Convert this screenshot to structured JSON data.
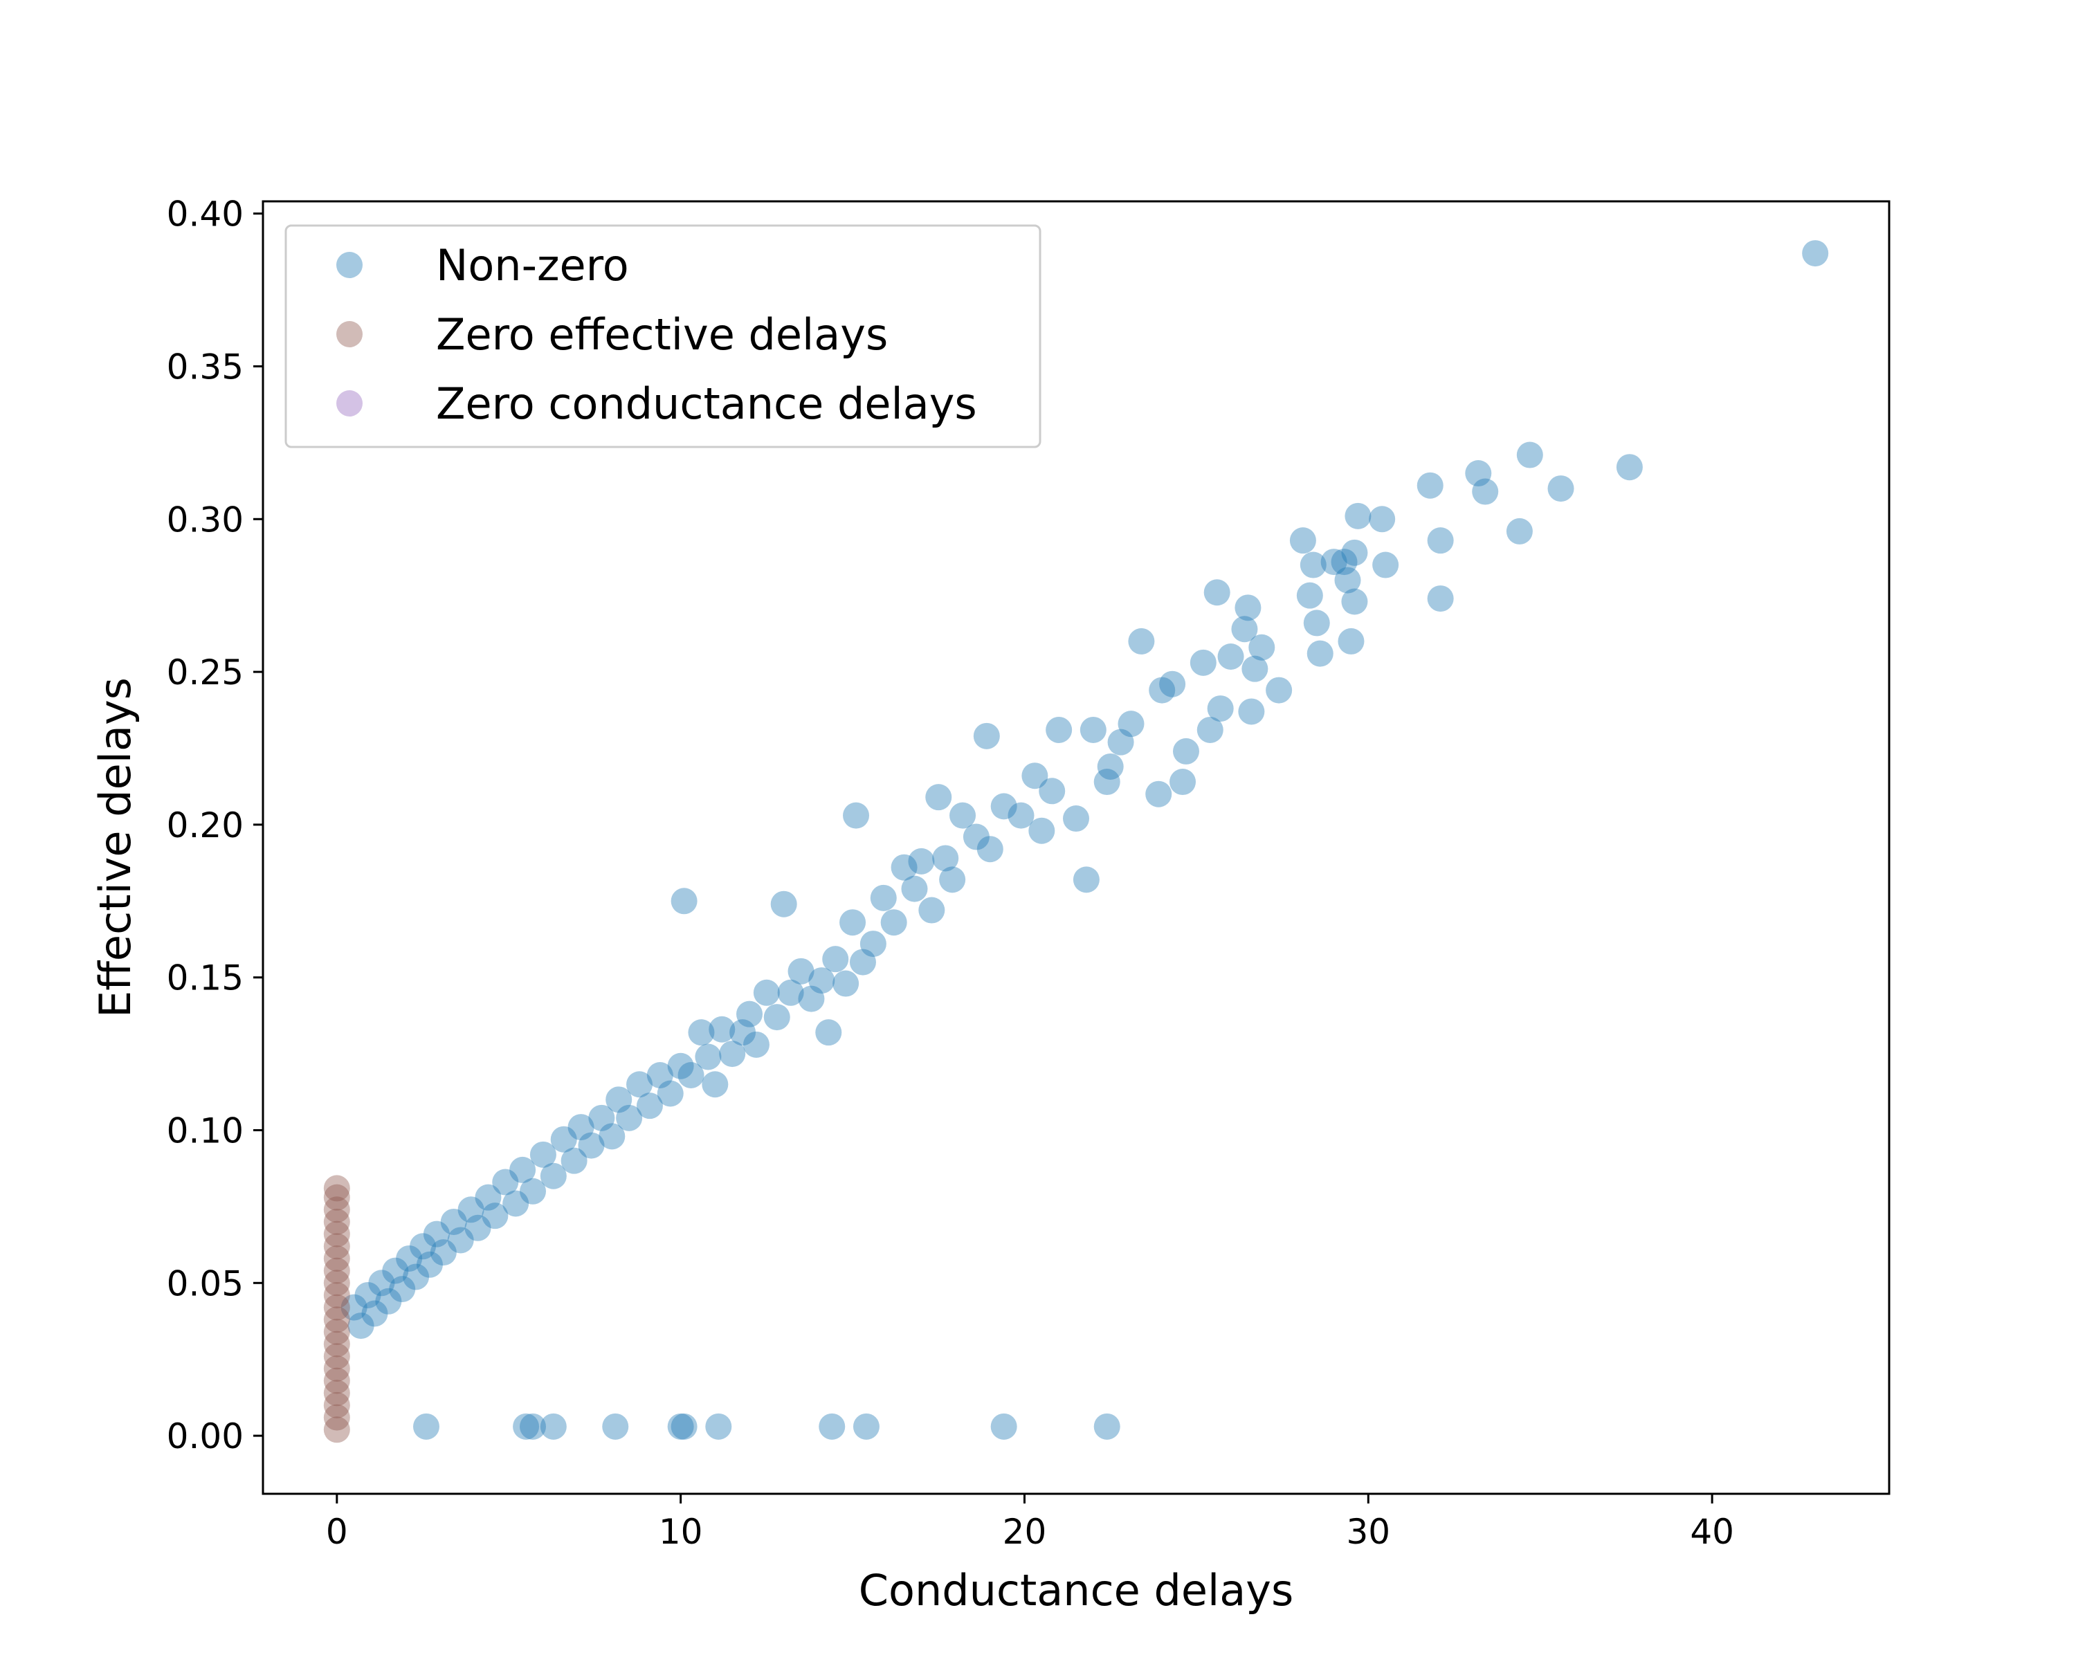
{
  "chart_data": {
    "type": "scatter",
    "title": "",
    "xlabel": "Conductance delays",
    "ylabel": "Effective delays",
    "xlim": [
      -2.15,
      45.15
    ],
    "ylim": [
      -0.019,
      0.404
    ],
    "xticks": [
      0,
      10,
      20,
      30,
      40
    ],
    "xtick_labels": [
      "0",
      "10",
      "20",
      "30",
      "40"
    ],
    "yticks": [
      0.0,
      0.05,
      0.1,
      0.15,
      0.2,
      0.25,
      0.3,
      0.35,
      0.4
    ],
    "ytick_labels": [
      "0.00",
      "0.05",
      "0.10",
      "0.15",
      "0.20",
      "0.25",
      "0.30",
      "0.35",
      "0.40"
    ],
    "grid": false,
    "legend_position": "top-left",
    "colors": {
      "non_zero": "#1f77b4",
      "zero_effective": "#8c564b",
      "zero_conductance": "#9467bd"
    },
    "marker_alpha": 0.4,
    "series": [
      {
        "name": "Non-zero",
        "color": "#1f77b4",
        "points": [
          [
            43.0,
            0.387
          ],
          [
            37.6,
            0.317
          ],
          [
            35.6,
            0.31
          ],
          [
            34.7,
            0.321
          ],
          [
            34.4,
            0.296
          ],
          [
            33.4,
            0.309
          ],
          [
            33.2,
            0.315
          ],
          [
            32.1,
            0.293
          ],
          [
            32.1,
            0.274
          ],
          [
            31.8,
            0.311
          ],
          [
            30.5,
            0.285
          ],
          [
            30.4,
            0.3
          ],
          [
            29.7,
            0.301
          ],
          [
            29.6,
            0.289
          ],
          [
            29.6,
            0.273
          ],
          [
            29.5,
            0.26
          ],
          [
            29.4,
            0.28
          ],
          [
            29.3,
            0.286
          ],
          [
            29.0,
            0.286
          ],
          [
            28.6,
            0.256
          ],
          [
            28.5,
            0.266
          ],
          [
            28.4,
            0.285
          ],
          [
            28.3,
            0.275
          ],
          [
            28.1,
            0.293
          ],
          [
            27.4,
            0.244
          ],
          [
            26.9,
            0.258
          ],
          [
            26.7,
            0.251
          ],
          [
            26.6,
            0.237
          ],
          [
            26.5,
            0.271
          ],
          [
            26.4,
            0.264
          ],
          [
            26.0,
            0.255
          ],
          [
            25.7,
            0.238
          ],
          [
            25.6,
            0.276
          ],
          [
            25.4,
            0.231
          ],
          [
            25.2,
            0.253
          ],
          [
            24.7,
            0.224
          ],
          [
            24.6,
            0.214
          ],
          [
            24.3,
            0.246
          ],
          [
            24.0,
            0.244
          ],
          [
            23.9,
            0.21
          ],
          [
            23.4,
            0.26
          ],
          [
            23.1,
            0.233
          ],
          [
            22.8,
            0.227
          ],
          [
            22.5,
            0.219
          ],
          [
            22.4,
            0.214
          ],
          [
            22.0,
            0.231
          ],
          [
            21.8,
            0.182
          ],
          [
            21.5,
            0.202
          ],
          [
            21.0,
            0.231
          ],
          [
            20.8,
            0.211
          ],
          [
            20.5,
            0.198
          ],
          [
            20.3,
            0.216
          ],
          [
            19.9,
            0.203
          ],
          [
            19.4,
            0.206
          ],
          [
            19.0,
            0.192
          ],
          [
            18.9,
            0.229
          ],
          [
            18.6,
            0.196
          ],
          [
            18.2,
            0.203
          ],
          [
            17.9,
            0.182
          ],
          [
            17.7,
            0.189
          ],
          [
            17.5,
            0.209
          ],
          [
            17.3,
            0.172
          ],
          [
            17.0,
            0.188
          ],
          [
            16.8,
            0.179
          ],
          [
            16.5,
            0.186
          ],
          [
            16.2,
            0.168
          ],
          [
            15.9,
            0.176
          ],
          [
            15.6,
            0.161
          ],
          [
            15.3,
            0.155
          ],
          [
            15.1,
            0.203
          ],
          [
            15.0,
            0.168
          ],
          [
            14.8,
            0.148
          ],
          [
            14.5,
            0.156
          ],
          [
            14.3,
            0.132
          ],
          [
            14.1,
            0.149
          ],
          [
            13.8,
            0.143
          ],
          [
            13.5,
            0.152
          ],
          [
            13.2,
            0.145
          ],
          [
            13.0,
            0.174
          ],
          [
            12.8,
            0.137
          ],
          [
            12.5,
            0.145
          ],
          [
            12.2,
            0.128
          ],
          [
            12.0,
            0.138
          ],
          [
            11.8,
            0.132
          ],
          [
            11.5,
            0.125
          ],
          [
            11.2,
            0.133
          ],
          [
            11.0,
            0.115
          ],
          [
            10.8,
            0.124
          ],
          [
            10.6,
            0.132
          ],
          [
            10.3,
            0.118
          ],
          [
            10.1,
            0.175
          ],
          [
            10.0,
            0.121
          ],
          [
            9.7,
            0.112
          ],
          [
            9.4,
            0.118
          ],
          [
            9.1,
            0.108
          ],
          [
            8.8,
            0.115
          ],
          [
            8.5,
            0.104
          ],
          [
            8.2,
            0.11
          ],
          [
            8.0,
            0.098
          ],
          [
            7.7,
            0.104
          ],
          [
            7.4,
            0.095
          ],
          [
            7.1,
            0.101
          ],
          [
            6.9,
            0.09
          ],
          [
            6.6,
            0.097
          ],
          [
            6.3,
            0.085
          ],
          [
            6.0,
            0.092
          ],
          [
            5.7,
            0.08
          ],
          [
            5.4,
            0.087
          ],
          [
            5.2,
            0.076
          ],
          [
            4.9,
            0.083
          ],
          [
            4.6,
            0.072
          ],
          [
            4.4,
            0.078
          ],
          [
            4.1,
            0.068
          ],
          [
            3.9,
            0.074
          ],
          [
            3.6,
            0.064
          ],
          [
            3.4,
            0.07
          ],
          [
            3.1,
            0.06
          ],
          [
            2.9,
            0.066
          ],
          [
            2.7,
            0.056
          ],
          [
            2.5,
            0.062
          ],
          [
            2.3,
            0.052
          ],
          [
            2.1,
            0.058
          ],
          [
            1.9,
            0.048
          ],
          [
            1.7,
            0.054
          ],
          [
            1.5,
            0.044
          ],
          [
            1.3,
            0.05
          ],
          [
            1.1,
            0.04
          ],
          [
            0.9,
            0.046
          ],
          [
            0.7,
            0.036
          ],
          [
            0.5,
            0.042
          ],
          [
            2.6,
            0.003
          ],
          [
            5.5,
            0.003
          ],
          [
            5.7,
            0.003
          ],
          [
            6.3,
            0.003
          ],
          [
            8.1,
            0.003
          ],
          [
            10.0,
            0.003
          ],
          [
            10.1,
            0.003
          ],
          [
            11.1,
            0.003
          ],
          [
            14.4,
            0.003
          ],
          [
            15.4,
            0.003
          ],
          [
            19.4,
            0.003
          ],
          [
            22.4,
            0.003
          ]
        ]
      },
      {
        "name": "Zero effective delays",
        "color": "#8c564b",
        "points": [
          [
            0.0,
            0.002
          ],
          [
            0.0,
            0.006
          ],
          [
            0.0,
            0.01
          ],
          [
            0.0,
            0.014
          ],
          [
            0.0,
            0.018
          ],
          [
            0.0,
            0.022
          ],
          [
            0.0,
            0.026
          ],
          [
            0.0,
            0.03
          ],
          [
            0.0,
            0.034
          ],
          [
            0.0,
            0.038
          ],
          [
            0.0,
            0.042
          ],
          [
            0.0,
            0.046
          ],
          [
            0.0,
            0.05
          ],
          [
            0.0,
            0.054
          ],
          [
            0.0,
            0.058
          ],
          [
            0.0,
            0.062
          ],
          [
            0.0,
            0.066
          ],
          [
            0.0,
            0.07
          ],
          [
            0.0,
            0.074
          ],
          [
            0.0,
            0.078
          ],
          [
            0.0,
            0.081
          ]
        ]
      },
      {
        "name": "Zero conductance delays",
        "color": "#9467bd",
        "points": []
      }
    ]
  }
}
